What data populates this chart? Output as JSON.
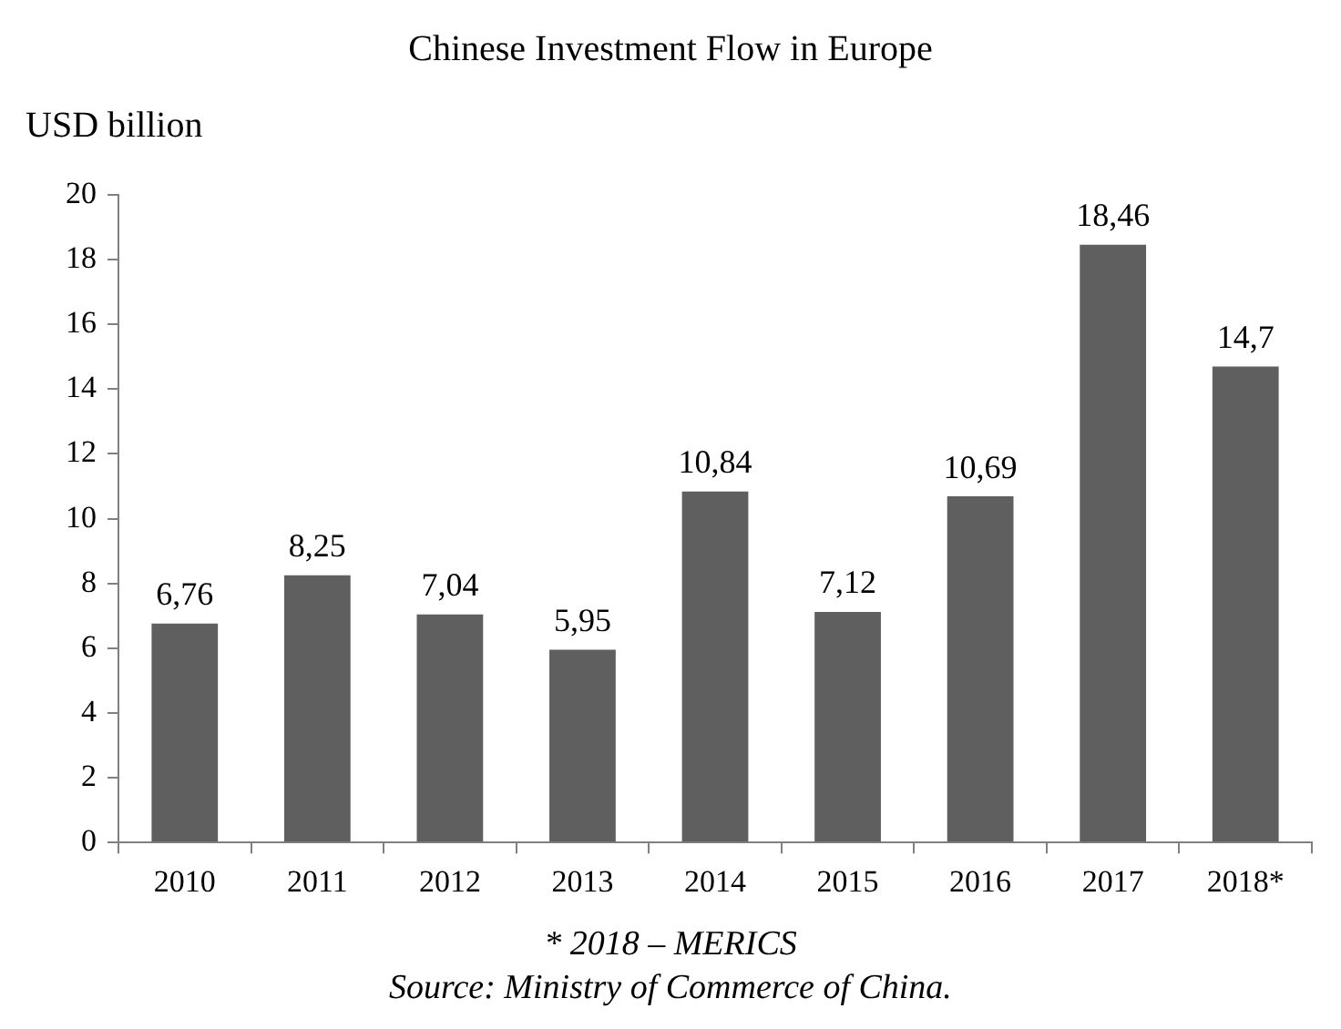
{
  "chart_data": {
    "type": "bar",
    "title": "Chinese Investment Flow in Europe",
    "ylabel": "USD billion",
    "categories": [
      "2010",
      "2011",
      "2012",
      "2013",
      "2014",
      "2015",
      "2016",
      "2017",
      "2018*"
    ],
    "values": [
      6.76,
      8.25,
      7.04,
      5.95,
      10.84,
      7.12,
      10.69,
      18.46,
      14.7
    ],
    "value_labels": [
      "6,76",
      "8,25",
      "7,04",
      "5,95",
      "10,84",
      "7,12",
      "10,69",
      "18,46",
      "14,7"
    ],
    "color": "#5f5f5f",
    "ylim": [
      0,
      20
    ],
    "yticks": [
      0,
      2,
      4,
      6,
      8,
      10,
      12,
      14,
      16,
      18,
      20
    ],
    "grid": false,
    "annotations": [
      "* 2018 – MERICS",
      "Source: Ministry of Commerce of China."
    ]
  }
}
